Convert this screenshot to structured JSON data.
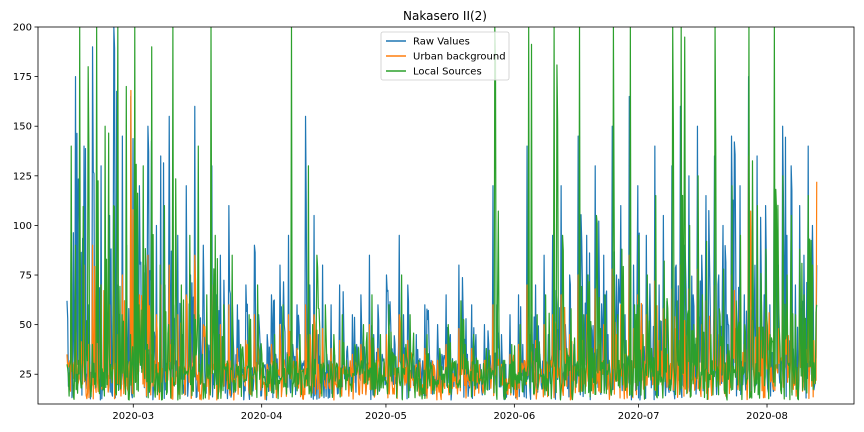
{
  "chart_data": {
    "type": "line",
    "title": "Nakasero II(2)",
    "xlabel": "",
    "ylabel": "",
    "x_range": [
      "2020-02-07",
      "2020-08-22"
    ],
    "ylim": [
      10,
      200
    ],
    "x_ticks": [
      "2020-03",
      "2020-04",
      "2020-05",
      "2020-06",
      "2020-07",
      "2020-08"
    ],
    "x_tick_dates": [
      "2020-03-01",
      "2020-04-01",
      "2020-05-01",
      "2020-06-01",
      "2020-07-01",
      "2020-08-01"
    ],
    "y_ticks": [
      25,
      50,
      75,
      100,
      125,
      150,
      175,
      200
    ],
    "grid": false,
    "legend_position": "top-center",
    "data_start": "2020-02-14",
    "data_end": "2020-08-13",
    "series": [
      {
        "name": "Raw Values",
        "color": "#1f77b4",
        "sampled_values": [
          62,
          110,
          175,
          95,
          140,
          60,
          190,
          85,
          130,
          55,
          105,
          200,
          70,
          145,
          90,
          165,
          60,
          120,
          80,
          150,
          50,
          100,
          135,
          70,
          155,
          60,
          95,
          45,
          120,
          75,
          160,
          55,
          90,
          40,
          130,
          65,
          85,
          50,
          110,
          45,
          60,
          35,
          70,
          40,
          90,
          55,
          30,
          45,
          65,
          35,
          80,
          50,
          95,
          40,
          60,
          30,
          155,
          70,
          105,
          45,
          80,
          35,
          60,
          25,
          70,
          45,
          30,
          55,
          40,
          65,
          30,
          85,
          45,
          60,
          35,
          75,
          50,
          40,
          95,
          55,
          70,
          35,
          45,
          28,
          60,
          40,
          30,
          50,
          35,
          65,
          45,
          30,
          80,
          55,
          35,
          60,
          45,
          30,
          50,
          40,
          120,
          60,
          45,
          30,
          55,
          35,
          65,
          40,
          140,
          55,
          70,
          35,
          85,
          45,
          95,
          60,
          120,
          50,
          75,
          40,
          145,
          70,
          95,
          50,
          130,
          65,
          85,
          45,
          150,
          75,
          110,
          55,
          165,
          80,
          120,
          60,
          95,
          50,
          140,
          70,
          105,
          55,
          130,
          80,
          160,
          90,
          125,
          65,
          150,
          85,
          115,
          60,
          135,
          75,
          100,
          55,
          145,
          80,
          120,
          65,
          175,
          90,
          135,
          70,
          110,
          60,
          125,
          80,
          150,
          95,
          130,
          70,
          110,
          85,
          140,
          100,
          80
        ]
      },
      {
        "name": "Urban background",
        "color": "#ff7f0e",
        "sampled_values": [
          35,
          50,
          65,
          45,
          80,
          40,
          90,
          55,
          70,
          35,
          60,
          95,
          45,
          75,
          50,
          168,
          40,
          65,
          50,
          85,
          35,
          55,
          70,
          45,
          80,
          40,
          55,
          30,
          65,
          45,
          85,
          35,
          50,
          28,
          70,
          40,
          50,
          32,
          60,
          30,
          38,
          25,
          42,
          28,
          55,
          35,
          22,
          30,
          40,
          25,
          50,
          32,
          55,
          28,
          38,
          22,
          60,
          45,
          55,
          30,
          48,
          25,
          38,
          20,
          42,
          30,
          22,
          35,
          28,
          40,
          22,
          50,
          30,
          38,
          24,
          45,
          32,
          28,
          55,
          35,
          42,
          24,
          30,
          20,
          38,
          28,
          22,
          32,
          25,
          40,
          30,
          22,
          48,
          35,
          25,
          38,
          30,
          22,
          32,
          28,
          60,
          38,
          30,
          22,
          35,
          25,
          40,
          28,
          70,
          35,
          42,
          25,
          50,
          30,
          55,
          38,
          65,
          32,
          45,
          28,
          75,
          42,
          55,
          32,
          68,
          40,
          50,
          30,
          78,
          45,
          60,
          35,
          85,
          48,
          65,
          38,
          55,
          32,
          72,
          42,
          58,
          35,
          68,
          48,
          80,
          52,
          68,
          40,
          78,
          50,
          62,
          38,
          70,
          45,
          56,
          35,
          75,
          48,
          65,
          40,
          135,
          52,
          72,
          42,
          62,
          38,
          68,
          48,
          80,
          55,
          70,
          42,
          62,
          50,
          75,
          58,
          122
        ]
      },
      {
        "name": "Local Sources",
        "color": "#2ca02c",
        "sampled_values": [
          30,
          140,
          90,
          200,
          60,
          180,
          40,
          200,
          70,
          150,
          35,
          110,
          200,
          55,
          170,
          45,
          200,
          60,
          130,
          40,
          190,
          30,
          80,
          110,
          50,
          200,
          35,
          70,
          25,
          95,
          55,
          140,
          35,
          65,
          200,
          95,
          45,
          60,
          30,
          85,
          30,
          40,
          22,
          55,
          25,
          70,
          35,
          20,
          30,
          45,
          22,
          60,
          35,
          200,
          28,
          45,
          20,
          130,
          50,
          85,
          30,
          60,
          22,
          45,
          18,
          55,
          32,
          20,
          40,
          28,
          50,
          20,
          65,
          32,
          45,
          22,
          60,
          35,
          28,
          75,
          40,
          55,
          22,
          32,
          18,
          45,
          28,
          20,
          38,
          25,
          50,
          32,
          20,
          62,
          40,
          22,
          45,
          32,
          20,
          38,
          28,
          200,
          45,
          32,
          20,
          40,
          25,
          50,
          28,
          200,
          40,
          55,
          24,
          65,
          32,
          200,
          45,
          95,
          38,
          58,
          28,
          200,
          55,
          75,
          38,
          105,
          48,
          65,
          32,
          200,
          55,
          88,
          42,
          200,
          60,
          95,
          45,
          75,
          38,
          115,
          52,
          82,
          40,
          200,
          62,
          200,
          70,
          100,
          50,
          125,
          65,
          92,
          45,
          200,
          58,
          78,
          40,
          120,
          62,
          95,
          50,
          200,
          70,
          110,
          55,
          88,
          45,
          200,
          62,
          125,
          75,
          105,
          55,
          88,
          65,
          115,
          80,
          60
        ]
      }
    ]
  }
}
